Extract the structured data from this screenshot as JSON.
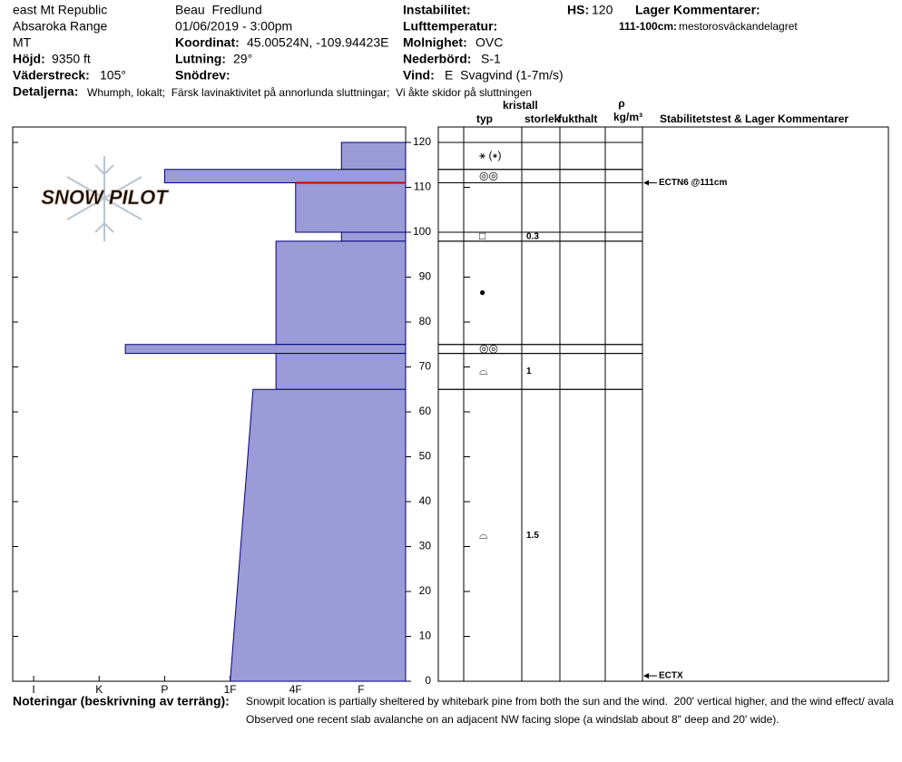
{
  "header": {
    "location": "east Mt Republic",
    "range": "Absaroka Range",
    "state": "MT",
    "observer": "Beau  Fredlund",
    "datetime": "01/06/2019 - 3:00pm",
    "elevation": {
      "label": "Höjd:",
      "value": "9350 ft"
    },
    "aspect": {
      "label": "Väderstreck:",
      "value": "105°"
    },
    "coordinates": {
      "label": "Koordinat:",
      "value": "45.00524N, -109.94423E"
    },
    "slope": {
      "label": "Lutning:",
      "value": "29°"
    },
    "snowdrift": {
      "label": "Snödrev:"
    },
    "instability": {
      "label": "Instabilitet:"
    },
    "air_temperature": {
      "label": "Lufttemperatur:"
    },
    "sky": {
      "label": "Molnighet:",
      "value": "OVC"
    },
    "precipitation": {
      "label": "Nederbörd:",
      "value": "S-1"
    },
    "wind": {
      "label": "Vind:",
      "value": "E  Svagvind (1-7m/s)"
    },
    "hs": {
      "label": "HS:",
      "value": 120
    },
    "layer_comments": {
      "title": "Lager Kommentarer:",
      "range": "111-100cm:",
      "text": "mestorosväckandelagret"
    },
    "details": {
      "label": "Detaljerna:",
      "value": "Whumph, lokalt;  Färsk lavinaktivitet på annorlunda sluttningar;  Vi åkte skidor på sluttningen"
    }
  },
  "notes": {
    "label": "Noteringar (beskrivning av terräng):",
    "lines": [
      "Snowpit location is partially sheltered by whitebark pine from both the sun and the wind.  200' vertical higher, and the wind effect/ avala",
      "Observed one recent slab avalanche on an adjacent NW facing slope (a windslab about 8\" deep and 20' wide)."
    ]
  },
  "chart_data": {
    "type": "hardness-profile",
    "logo": "SNOW PILOT",
    "ylim": [
      0,
      120
    ],
    "yticks": [
      0,
      10,
      20,
      30,
      40,
      50,
      60,
      70,
      80,
      90,
      100,
      110,
      120
    ],
    "xlim": [
      6.32,
      0.32
    ],
    "xticks": [
      {
        "value": 6,
        "label": "I"
      },
      {
        "value": 5,
        "label": "K"
      },
      {
        "value": 4,
        "label": "P"
      },
      {
        "value": 3,
        "label": "1F"
      },
      {
        "value": 2,
        "label": "4F"
      },
      {
        "value": 1,
        "label": "F"
      }
    ],
    "color": "#9b9bd7",
    "edge_color": "#000080",
    "critical_height": 111,
    "critical_color": "#cc0000",
    "columns": {
      "type": "typ",
      "crystal": "kristall",
      "size": "storlek",
      "moisture": "fukthalt",
      "density": "ρ",
      "density_unit": "kg/m³",
      "comments": "Stabilitetstest & Lager Kommentarer"
    },
    "layers": [
      {
        "top": 120,
        "bottom": 114,
        "hardness": [
          1.3,
          1.3
        ],
        "grain": "⚹ (∗)"
      },
      {
        "top": 114,
        "bottom": 111,
        "hardness": [
          4,
          4
        ],
        "grain": "◎◎"
      },
      {
        "top": 111,
        "bottom": 100,
        "hardness": [
          2,
          2
        ]
      },
      {
        "top": 100,
        "bottom": 98,
        "hardness": [
          1.3,
          1.3
        ],
        "grain": "□",
        "size": 0.3
      },
      {
        "top": 98,
        "bottom": 75,
        "hardness": [
          2.3,
          2.3
        ],
        "grain": "●"
      },
      {
        "top": 75,
        "bottom": 73,
        "hardness": [
          4.6,
          4.6
        ],
        "grain": "◎◎"
      },
      {
        "top": 73,
        "bottom": 65,
        "hardness": [
          2.3,
          2.3
        ],
        "grain": "⌓",
        "size": 1
      },
      {
        "top": 65,
        "bottom": 0,
        "hardness": [
          2.65,
          3
        ],
        "grain": "⌓",
        "size": 1.5
      }
    ],
    "tests": [
      {
        "label": "ECTN6 @111cm",
        "height": 111
      },
      {
        "label": "ECTX",
        "height": 0
      }
    ]
  }
}
